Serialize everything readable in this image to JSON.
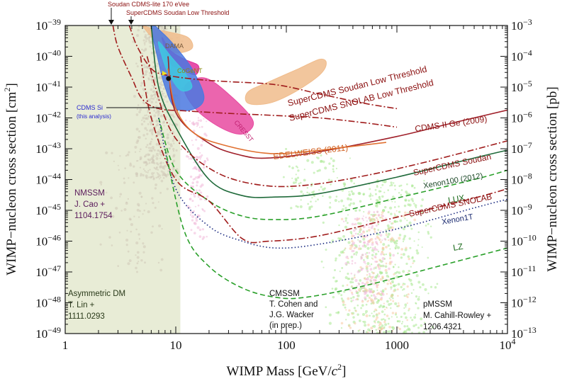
{
  "chart_data": {
    "type": "line",
    "xscale": "log",
    "yscale": "log",
    "xlim": [
      1,
      10000
    ],
    "ylim": [
      1e-49,
      1e-39
    ],
    "xlabel_main": "WIMP Mass [GeV/",
    "xlabel_sym": "c",
    "xlabel_sup": "2",
    "xlabel_tail": "]",
    "ylabel": "WIMP−nucleon cross section [cm",
    "ylabel_sup": "2",
    "ylabel_tail": "]",
    "y2label": "WIMP−nucleon cross section [pb]",
    "x_ticks": [
      {
        "v": 1,
        "t": "1"
      },
      {
        "v": 10,
        "t": "10"
      },
      {
        "v": 100,
        "t": "100"
      },
      {
        "v": 1000,
        "t": "1000"
      },
      {
        "v": 10000,
        "t": "10",
        "sup": "4"
      }
    ],
    "y_ticks": [
      {
        "e": -39,
        "t": "10",
        "sup": "−39"
      },
      {
        "e": -40,
        "t": "10",
        "sup": "−40"
      },
      {
        "e": -41,
        "t": "10",
        "sup": "−41"
      },
      {
        "e": -42,
        "t": "10",
        "sup": "−42"
      },
      {
        "e": -43,
        "t": "10",
        "sup": "−43"
      },
      {
        "e": -44,
        "t": "10",
        "sup": "−44"
      },
      {
        "e": -45,
        "t": "10",
        "sup": "−45"
      },
      {
        "e": -46,
        "t": "10",
        "sup": "−46"
      },
      {
        "e": -47,
        "t": "10",
        "sup": "−47"
      },
      {
        "e": -48,
        "t": "10",
        "sup": "−48"
      },
      {
        "e": -49,
        "t": "10",
        "sup": "−49"
      }
    ],
    "y2_ticks": [
      {
        "e": -39,
        "t": "10",
        "sup": "−3"
      },
      {
        "e": -40,
        "t": "10",
        "sup": "−4"
      },
      {
        "e": -41,
        "t": "10",
        "sup": "−5"
      },
      {
        "e": -42,
        "t": "10",
        "sup": "−6"
      },
      {
        "e": -43,
        "t": "10",
        "sup": "−7"
      },
      {
        "e": -44,
        "t": "10",
        "sup": "−8"
      },
      {
        "e": -45,
        "t": "10",
        "sup": "−9"
      },
      {
        "e": -46,
        "t": "10",
        "sup": "−10"
      },
      {
        "e": -47,
        "t": "10",
        "sup": "−11"
      },
      {
        "e": -48,
        "t": "10",
        "sup": "−12"
      },
      {
        "e": -49,
        "t": "10",
        "sup": "−13"
      }
    ],
    "colors": {
      "supercdms": "#a01c1c",
      "green": "#2aa02a",
      "navy": "#1a2a80",
      "cdmsge": "#a0202a",
      "edelweiss": "#e07030",
      "xenon100": "#1f6a3a",
      "dama": "#f0bc8c",
      "cogent": "#e0309a",
      "cresst": "#e84aa0",
      "cdmssi_blue": "#4a78e0",
      "cdmssi_cyan": "#40c8e0",
      "nmssm_band": "#e8ecd6",
      "dots_grey": "#cfc8b8",
      "dots_pink": "#f0b8d8",
      "dots_green": "#a8e890",
      "dots_orange": "#f8c8a0"
    },
    "series": [
      {
        "name": "SuperCDMS Soudan Low Threshold",
        "style": "dashdot",
        "color": "supercdms",
        "points": [
          [
            3.8,
            1e-39
          ],
          [
            4.5,
            2e-40
          ],
          [
            6,
            4e-41
          ],
          [
            8,
            2.5e-41
          ],
          [
            15,
            1.8e-41
          ],
          [
            30,
            1.5e-41
          ],
          [
            80,
            1.2e-41
          ],
          [
            200,
            6e-42
          ],
          [
            500,
            3e-42
          ],
          [
            1000,
            2e-42
          ]
        ]
      },
      {
        "name": "SuperCDMS SNOLAB Low Threshold",
        "style": "dashdot",
        "color": "supercdms",
        "points": [
          [
            2.7,
            1e-39
          ],
          [
            3,
            2e-40
          ],
          [
            4,
            2e-41
          ],
          [
            5,
            4e-42
          ],
          [
            7,
            2e-42
          ],
          [
            12,
            1.7e-42
          ],
          [
            30,
            1.4e-42
          ],
          [
            80,
            1.2e-42
          ],
          [
            200,
            1e-42
          ],
          [
            500,
            7e-43
          ],
          [
            1000,
            5e-43
          ]
        ]
      },
      {
        "name": "CDMS II Ge (2009)",
        "style": "solid",
        "color": "cdmsge",
        "points": [
          [
            8.5,
            1e-40
          ],
          [
            10,
            1.5e-42
          ],
          [
            20,
            1.5e-43
          ],
          [
            40,
            6e-44
          ],
          [
            70,
            5e-44
          ],
          [
            200,
            8e-44
          ],
          [
            1000,
            2.5e-43
          ],
          [
            3000,
            6.5e-43
          ],
          [
            10000,
            1.8e-42
          ]
        ]
      },
      {
        "name": "EDELWEISS (2011)",
        "style": "solid",
        "color": "edelweiss",
        "points": [
          [
            8.5,
            4e-41
          ],
          [
            10,
            2e-42
          ],
          [
            15,
            3e-43
          ],
          [
            30,
            1.2e-43
          ],
          [
            70,
            7e-44
          ],
          [
            150,
            8e-44
          ],
          [
            400,
            1.2e-43
          ],
          [
            800,
            1.6e-43
          ]
        ]
      },
      {
        "name": "Xenon100 (2012)",
        "style": "solid",
        "color": "xenon100",
        "points": [
          [
            6,
            1e-39
          ],
          [
            7,
            1e-41
          ],
          [
            10,
            5e-43
          ],
          [
            20,
            1e-44
          ],
          [
            40,
            3e-45
          ],
          [
            80,
            2.7e-45
          ],
          [
            200,
            3.5e-45
          ],
          [
            1000,
            1.2e-44
          ],
          [
            5000,
            5e-44
          ],
          [
            10000,
            9e-44
          ]
        ]
      },
      {
        "name": "SuperCDMS Soudan",
        "style": "dashdot",
        "color": "supercdms",
        "points": [
          [
            5.5,
            1e-40
          ],
          [
            8,
            1e-42
          ],
          [
            12,
            1e-43
          ],
          [
            25,
            1.5e-44
          ],
          [
            60,
            6.5e-45
          ],
          [
            150,
            6.5e-45
          ],
          [
            500,
            1.3e-44
          ],
          [
            2000,
            4e-44
          ],
          [
            10000,
            1.8e-43
          ]
        ]
      },
      {
        "name": "LUX",
        "style": "dashed",
        "color": "green",
        "points": [
          [
            7,
            1e-42
          ],
          [
            10,
            2e-44
          ],
          [
            20,
            2e-45
          ],
          [
            40,
            6.5e-46
          ],
          [
            80,
            5e-46
          ],
          [
            200,
            6.5e-46
          ],
          [
            1000,
            2.5e-45
          ],
          [
            5000,
            1e-44
          ],
          [
            10000,
            2e-44
          ]
        ]
      },
      {
        "name": "SuperCDMS SNOLAB",
        "style": "dashdot",
        "color": "supercdms",
        "points": [
          [
            4.8,
            1e-40
          ],
          [
            6,
            1e-42
          ],
          [
            10,
            1e-44
          ],
          [
            20,
            2e-45
          ],
          [
            40,
            1.2e-46
          ],
          [
            70,
            1e-46
          ],
          [
            200,
            1.5e-46
          ],
          [
            1000,
            6e-46
          ],
          [
            5000,
            2.5e-45
          ],
          [
            10000,
            5e-45
          ]
        ]
      },
      {
        "name": "Xenon1T",
        "style": "dotted",
        "color": "navy",
        "points": [
          [
            7,
            1e-42
          ],
          [
            10,
            5e-45
          ],
          [
            20,
            3e-46
          ],
          [
            40,
            1e-46
          ],
          [
            80,
            6e-47
          ],
          [
            200,
            8e-47
          ],
          [
            1000,
            2.5e-46
          ],
          [
            5000,
            1.2e-45
          ],
          [
            10000,
            2.3e-45
          ]
        ]
      },
      {
        "name": "LZ",
        "style": "dashed",
        "color": "green",
        "points": [
          [
            8,
            1e-43
          ],
          [
            12,
            2e-46
          ],
          [
            20,
            1.5e-47
          ],
          [
            40,
            3e-48
          ],
          [
            80,
            1.5e-48
          ],
          [
            150,
            1.5e-48
          ],
          [
            500,
            3.5e-48
          ],
          [
            2000,
            1.3e-47
          ],
          [
            10000,
            6e-47
          ]
        ]
      }
    ],
    "regions": [
      {
        "name": "DAMA",
        "color": "dama",
        "points": [
          [
            5,
            1e-39
          ],
          [
            7,
            2.5e-40
          ],
          [
            10,
            1.3e-40
          ],
          [
            14,
            1.8e-40
          ],
          [
            13,
            4e-40
          ],
          [
            9,
            6e-40
          ],
          [
            6,
            8e-40
          ]
        ]
      },
      {
        "name": "DAMA",
        "color": "dama",
        "points": [
          [
            45,
            7e-42
          ],
          [
            70,
            1.5e-41
          ],
          [
            130,
            4e-41
          ],
          [
            200,
            8e-41
          ],
          [
            230,
            6e-41
          ],
          [
            200,
            2.5e-41
          ],
          [
            120,
            7e-42
          ],
          [
            70,
            3e-42
          ],
          [
            45,
            3e-42
          ]
        ]
      },
      {
        "name": "CoGeNT",
        "color": "cogent",
        "points": [
          [
            7.5,
            4e-40
          ],
          [
            9,
            1.5e-40
          ],
          [
            12,
            8e-41
          ],
          [
            16,
            5e-41
          ],
          [
            15,
            2.5e-41
          ],
          [
            11,
            4e-41
          ],
          [
            9,
            6e-41
          ]
        ]
      },
      {
        "name": "CRESST",
        "color": "cresst",
        "points": [
          [
            12,
            1e-41
          ],
          [
            18,
            2e-41
          ],
          [
            30,
            6e-42
          ],
          [
            50,
            8e-43
          ],
          [
            40,
            3e-43
          ],
          [
            25,
            5e-43
          ],
          [
            15,
            2e-42
          ]
        ]
      },
      {
        "name": "CDMS Si",
        "color": "cdmssi_blue",
        "points": [
          [
            6,
            1e-39
          ],
          [
            7.5,
            6e-40
          ],
          [
            10,
            2e-40
          ],
          [
            14,
            4e-41
          ],
          [
            18,
            5e-42
          ],
          [
            15,
            2e-42
          ],
          [
            10,
            2e-42
          ],
          [
            8,
            1e-41
          ],
          [
            6.8,
            1e-40
          ]
        ]
      },
      {
        "name": "CDMS Si",
        "color": "cdmssi_cyan",
        "points": [
          [
            7,
            3e-40
          ],
          [
            9,
            1e-40
          ],
          [
            12,
            3e-41
          ],
          [
            14,
            1e-41
          ],
          [
            11,
            8e-42
          ],
          [
            8.5,
            3e-41
          ],
          [
            7.5,
            1e-40
          ]
        ]
      }
    ],
    "point": {
      "name": "CDMS Si best fit",
      "x": 8.6,
      "y": 1.9e-41
    },
    "bands": [
      {
        "x0": 1,
        "x1": 11,
        "y0": 1e-49,
        "y1": 1e-39,
        "color": "nmssm_band"
      }
    ],
    "scatter_clouds": [
      {
        "color": "dots_grey",
        "x": [
          4,
          12
        ],
        "y": [
          1e-44,
          1e-39
        ],
        "n": 520
      },
      {
        "color": "dots_grey",
        "x": [
          2,
          9
        ],
        "y": [
          1e-47,
          1e-43
        ],
        "n": 110
      },
      {
        "color": "dots_pink",
        "x": [
          12,
          20
        ],
        "y": [
          1e-46,
          1e-42
        ],
        "n": 120
      },
      {
        "color": "dots_green",
        "x": [
          200,
          2500
        ],
        "y": [
          1e-49,
          1e-44
        ],
        "n": 560
      },
      {
        "color": "dots_orange",
        "x": [
          300,
          1500
        ],
        "y": [
          1e-49,
          1e-45
        ],
        "n": 200
      },
      {
        "color": "dots_pink",
        "x": [
          300,
          1000
        ],
        "y": [
          1e-48,
          1e-45
        ],
        "n": 160
      },
      {
        "color": "dots_green",
        "x": [
          80,
          400
        ],
        "y": [
          1e-45,
          1e-43
        ],
        "n": 80
      }
    ],
    "annotations": {
      "top1": "Soudan CDMS-lite 170 eVee",
      "top2": "SuperCDMS Soudan Low Threshold",
      "dama": "DAMA",
      "cogent": "CoGeNT",
      "cdmssi1": "CDMS Si",
      "cdmssi2": "(this analysis)",
      "cresst": "CRESST",
      "scdms_lt": "SuperCDMS Soudan Low Threshold",
      "snolab_lt": "SuperCDMS SNOLAB Low Threshold",
      "cdmsge": "CDMS II Ge  (2009)",
      "edelweiss": "EDELWEISS (2011)",
      "scdms_soudan": "SuperCDMS Soudan",
      "xenon100": "Xenon100 (2012)",
      "lux": "LUX",
      "scdms_snolab": "SuperCDMS SNOLAB",
      "xenon1t": "Xenon1T",
      "lz": "LZ",
      "nmssm1": "NMSSM",
      "nmssm2": "J. Cao +",
      "nmssm3": "1104.1754",
      "asym1": "Asymmetric DM",
      "asym2": "T. Lin +",
      "asym3": "1111.0293",
      "cmssm1": "CMSSM",
      "cmssm2": "T. Cohen and",
      "cmssm3": "J.G. Wacker",
      "cmssm4": "(in prep.)",
      "pmssm1": "pMSSM",
      "pmssm2": "M. Cahill-Rowley +",
      "pmssm3": "1206.4321"
    }
  }
}
